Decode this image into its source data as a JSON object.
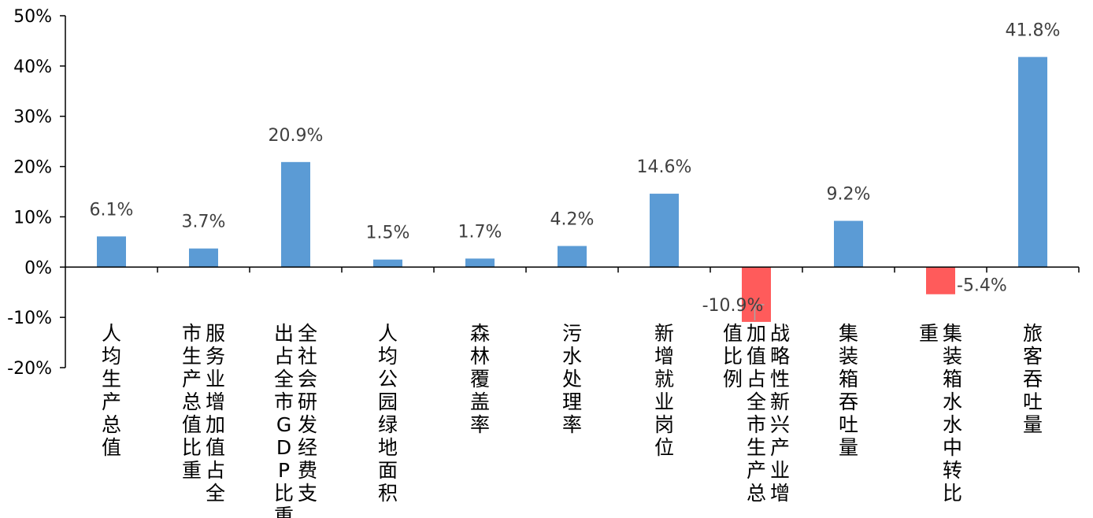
{
  "chart_data": {
    "type": "bar",
    "title": "",
    "xlabel": "",
    "ylabel": "",
    "ylim": [
      -20,
      50
    ],
    "yticks": [
      "50%",
      "40%",
      "30%",
      "20%",
      "10%",
      "0%",
      "-10%",
      "-20%"
    ],
    "grid": false,
    "legend": "none",
    "colors": {
      "positive": "#5B9BD5",
      "negative": "#FF5B5B"
    },
    "categories": [
      [
        "人均生产总值"
      ],
      [
        "服务业增加值占全",
        "市生产总值比重"
      ],
      [
        "全社会研发经费支",
        "出占全市GDP比重"
      ],
      [
        "人均公园绿地面积"
      ],
      [
        "森林覆盖率"
      ],
      [
        "污水处理率"
      ],
      [
        "新增就业岗位"
      ],
      [
        "战略性新兴产业增",
        "加值占全市生产总",
        "值比例"
      ],
      [
        "集装箱吞吐量"
      ],
      [
        "集装箱水水中转比",
        "重"
      ],
      [
        "旅客吞吐量"
      ]
    ],
    "values": [
      6.1,
      3.7,
      20.9,
      1.5,
      1.7,
      4.2,
      14.6,
      -10.9,
      9.2,
      -5.4,
      41.8
    ],
    "data_labels": [
      "6.1%",
      "3.7%",
      "20.9%",
      "1.5%",
      "1.7%",
      "4.2%",
      "14.6%",
      "-10.9%",
      "9.2%",
      "-5.4%",
      "41.8%"
    ]
  }
}
